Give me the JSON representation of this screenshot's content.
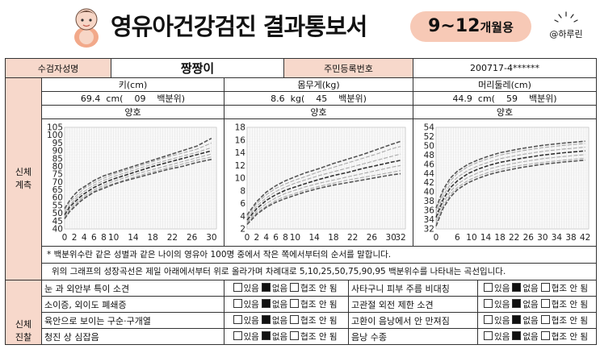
{
  "header": {
    "title": "영유아건강검진 결과통보서",
    "age_badge_main": "9~12",
    "age_badge_suffix": "개월용",
    "watermark": "@하루린"
  },
  "patient": {
    "name_label": "수검자성명",
    "name": "짱짱이",
    "id_label": "주민등록번호",
    "id_value": "200717-4******"
  },
  "section_body": "신체\n계측",
  "section_exam": "신체\n진찰",
  "measure": [
    {
      "label": "키(cm)",
      "value": "69.4  cm(    09    백분위)",
      "status": "양호"
    },
    {
      "label": "몸무게(kg)",
      "value": "8.6  kg(    45    백분위)",
      "status": "양호"
    },
    {
      "label": "머리둘레(cm)",
      "value": "44.9  cm(    59    백분위)",
      "status": "양호"
    }
  ],
  "note_line1": "* 백분위수란 같은 성별과 같은 나이의 영유아 100명 중에서 작은 쪽에서부터의 순서를 말합니다.",
  "note_line2": "위의 그래프의 성장곡선은 제일 아래에서부터 위로 올라가며 차례대로 5,10,25,50,75,90,95 백분위수를 나타내는 곡선입니다.",
  "options": [
    "있음",
    "없음",
    "협조 안 됨"
  ],
  "exam_rows": [
    {
      "left": "눈 과 외안부 특이 소견",
      "left_selected": 1,
      "right": "사타구니 피부 주름 비대칭",
      "right_selected": 1
    },
    {
      "left": "소이증, 외이도 폐쇄증",
      "left_selected": 1,
      "right": "고관절 외전 제한 소견",
      "right_selected": 1
    },
    {
      "left": "육안으로 보이는 구순·구개열",
      "left_selected": 1,
      "right": "고환이 음낭에서 안 만져짐",
      "right_selected": 1
    },
    {
      "left": "청진 상 심잡음",
      "left_selected": 1,
      "right": "음낭 수종",
      "right_selected": 1
    }
  ],
  "chart_data": [
    {
      "type": "line",
      "title": "",
      "xlabel": "",
      "ylabel": "",
      "x_ticks": [
        "0",
        "2",
        "4",
        "6",
        "8",
        "10",
        "14",
        "18",
        "22",
        "26",
        "30"
      ],
      "y_ticks": [
        "105",
        "100",
        "95",
        "90",
        "85",
        "80",
        "75",
        "70",
        "65",
        "60",
        "55",
        "50",
        "45",
        "40"
      ],
      "xlim": [
        0,
        31
      ],
      "ylim": [
        40,
        105
      ],
      "series": [
        {
          "percentile": 95,
          "x": [
            0,
            1,
            2,
            3,
            4,
            6,
            8,
            10,
            12,
            15,
            18,
            21,
            24,
            27,
            30
          ],
          "y": [
            53,
            58,
            62,
            65,
            67,
            71,
            74,
            76,
            78,
            81,
            84,
            87,
            90,
            93,
            98
          ]
        },
        {
          "percentile": 90,
          "x": [
            0,
            1,
            2,
            3,
            4,
            6,
            8,
            10,
            12,
            15,
            18,
            21,
            24,
            27,
            30
          ],
          "y": [
            52,
            57,
            60,
            63,
            66,
            69.5,
            72.5,
            75,
            77,
            80,
            83,
            86,
            88.5,
            91,
            95
          ]
        },
        {
          "percentile": 75,
          "x": [
            0,
            1,
            2,
            3,
            4,
            6,
            8,
            10,
            12,
            15,
            18,
            21,
            24,
            27,
            30
          ],
          "y": [
            50.5,
            55,
            58.5,
            61.5,
            64,
            68,
            71,
            73.5,
            75.5,
            78.5,
            81.5,
            84,
            86.5,
            89,
            92
          ]
        },
        {
          "percentile": 50,
          "x": [
            0,
            1,
            2,
            3,
            4,
            6,
            8,
            10,
            12,
            15,
            18,
            21,
            24,
            27,
            30
          ],
          "y": [
            49,
            54,
            57,
            60,
            62.5,
            66.5,
            69.5,
            72,
            74,
            77,
            80,
            82.5,
            85,
            87.5,
            90
          ]
        },
        {
          "percentile": 25,
          "x": [
            0,
            1,
            2,
            3,
            4,
            6,
            8,
            10,
            12,
            15,
            18,
            21,
            24,
            27,
            30
          ],
          "y": [
            48,
            52.5,
            55.5,
            58.5,
            61,
            65,
            68,
            70.5,
            72.5,
            75.5,
            78,
            80.5,
            83,
            85.5,
            88
          ]
        },
        {
          "percentile": 10,
          "x": [
            0,
            1,
            2,
            3,
            4,
            6,
            8,
            10,
            12,
            15,
            18,
            21,
            24,
            27,
            30
          ],
          "y": [
            47,
            51.5,
            54.5,
            57.5,
            60,
            64,
            67,
            69,
            71,
            74,
            76.5,
            79,
            81.5,
            84,
            86
          ]
        },
        {
          "percentile": 5,
          "x": [
            0,
            1,
            2,
            3,
            4,
            6,
            8,
            10,
            12,
            15,
            18,
            21,
            24,
            27,
            30
          ],
          "y": [
            46.5,
            51,
            54,
            57,
            59.5,
            63.5,
            66,
            68.5,
            70.5,
            73,
            75.5,
            78,
            80,
            82.5,
            84.5
          ]
        }
      ]
    },
    {
      "type": "line",
      "title": "",
      "xlabel": "",
      "ylabel": "",
      "x_ticks": [
        "0",
        "2",
        "4",
        "6",
        "8",
        "10",
        "14",
        "18",
        "22",
        "26",
        "30",
        "32"
      ],
      "y_ticks": [
        "18",
        "16",
        "14",
        "12",
        "10",
        "8",
        "6",
        "4",
        "2"
      ],
      "xlim": [
        0,
        33
      ],
      "ylim": [
        2,
        18
      ],
      "series": [
        {
          "percentile": 95,
          "x": [
            0,
            2,
            4,
            6,
            8,
            10,
            12,
            15,
            18,
            21,
            24,
            27,
            30,
            32
          ],
          "y": [
            4.2,
            6.3,
            7.8,
            8.8,
            9.6,
            10.2,
            10.8,
            11.5,
            12.3,
            13.0,
            13.7,
            14.5,
            15.3,
            15.8
          ]
        },
        {
          "percentile": 90,
          "x": [
            0,
            2,
            4,
            6,
            8,
            10,
            12,
            15,
            18,
            21,
            24,
            27,
            30,
            32
          ],
          "y": [
            4.0,
            6.0,
            7.4,
            8.4,
            9.1,
            9.7,
            10.2,
            11.0,
            11.7,
            12.4,
            13.1,
            13.8,
            14.6,
            15.0
          ]
        },
        {
          "percentile": 75,
          "x": [
            0,
            2,
            4,
            6,
            8,
            10,
            12,
            15,
            18,
            21,
            24,
            27,
            30,
            32
          ],
          "y": [
            3.7,
            5.6,
            6.9,
            7.9,
            8.6,
            9.2,
            9.7,
            10.4,
            11.0,
            11.6,
            12.2,
            12.8,
            13.4,
            13.8
          ]
        },
        {
          "percentile": 50,
          "x": [
            0,
            2,
            4,
            6,
            8,
            10,
            12,
            15,
            18,
            21,
            24,
            27,
            30,
            32
          ],
          "y": [
            3.4,
            5.2,
            6.5,
            7.4,
            8.1,
            8.6,
            9.1,
            9.8,
            10.4,
            10.9,
            11.5,
            12.0,
            12.5,
            12.8
          ]
        },
        {
          "percentile": 25,
          "x": [
            0,
            2,
            4,
            6,
            8,
            10,
            12,
            15,
            18,
            21,
            24,
            27,
            30,
            32
          ],
          "y": [
            3.1,
            4.8,
            6.0,
            6.9,
            7.6,
            8.1,
            8.6,
            9.2,
            9.7,
            10.2,
            10.7,
            11.2,
            11.7,
            12.0
          ]
        },
        {
          "percentile": 10,
          "x": [
            0,
            2,
            4,
            6,
            8,
            10,
            12,
            15,
            18,
            21,
            24,
            27,
            30,
            32
          ],
          "y": [
            2.9,
            4.5,
            5.6,
            6.5,
            7.1,
            7.6,
            8.1,
            8.7,
            9.2,
            9.7,
            10.1,
            10.5,
            10.9,
            11.2
          ]
        },
        {
          "percentile": 5,
          "x": [
            0,
            2,
            4,
            6,
            8,
            10,
            12,
            15,
            18,
            21,
            24,
            27,
            30,
            32
          ],
          "y": [
            2.7,
            4.3,
            5.4,
            6.2,
            6.8,
            7.3,
            7.8,
            8.4,
            8.9,
            9.3,
            9.7,
            10.1,
            10.5,
            10.7
          ]
        }
      ]
    },
    {
      "type": "line",
      "title": "",
      "xlabel": "",
      "ylabel": "",
      "x_ticks": [
        "0",
        "6",
        "10",
        "14",
        "18",
        "22",
        "26",
        "30",
        "34",
        "38",
        "42"
      ],
      "y_ticks": [
        "54",
        "52",
        "50",
        "48",
        "46",
        "44",
        "42",
        "40",
        "38",
        "36",
        "34",
        "32"
      ],
      "xlim": [
        0,
        43
      ],
      "ylim": [
        32,
        54
      ],
      "series": [
        {
          "percentile": 95,
          "x": [
            0,
            2,
            4,
            6,
            9,
            12,
            15,
            18,
            24,
            30,
            36,
            42
          ],
          "y": [
            36.5,
            40.5,
            43,
            44.5,
            46,
            47,
            47.8,
            48.5,
            49.4,
            50.1,
            50.6,
            51.0
          ]
        },
        {
          "percentile": 90,
          "x": [
            0,
            2,
            4,
            6,
            9,
            12,
            15,
            18,
            24,
            30,
            36,
            42
          ],
          "y": [
            36.0,
            40.0,
            42.4,
            44.0,
            45.5,
            46.5,
            47.3,
            48.0,
            48.9,
            49.6,
            50.1,
            50.5
          ]
        },
        {
          "percentile": 75,
          "x": [
            0,
            2,
            4,
            6,
            9,
            12,
            15,
            18,
            24,
            30,
            36,
            42
          ],
          "y": [
            35.2,
            39.2,
            41.6,
            43.2,
            44.7,
            45.7,
            46.5,
            47.2,
            48.1,
            48.8,
            49.3,
            49.7
          ]
        },
        {
          "percentile": 50,
          "x": [
            0,
            2,
            4,
            6,
            9,
            12,
            15,
            18,
            24,
            30,
            36,
            42
          ],
          "y": [
            34.5,
            38.4,
            40.9,
            42.4,
            44.0,
            45.0,
            45.8,
            46.4,
            47.3,
            48.0,
            48.5,
            48.9
          ]
        },
        {
          "percentile": 25,
          "x": [
            0,
            2,
            4,
            6,
            9,
            12,
            15,
            18,
            24,
            30,
            36,
            42
          ],
          "y": [
            33.8,
            37.7,
            40.1,
            41.7,
            43.2,
            44.2,
            45.0,
            45.6,
            46.5,
            47.2,
            47.7,
            48.1
          ]
        },
        {
          "percentile": 10,
          "x": [
            0,
            2,
            4,
            6,
            9,
            12,
            15,
            18,
            24,
            30,
            36,
            42
          ],
          "y": [
            33.1,
            37.0,
            39.4,
            41.0,
            42.5,
            43.5,
            44.3,
            44.9,
            45.8,
            46.4,
            46.9,
            47.3
          ]
        },
        {
          "percentile": 5,
          "x": [
            0,
            2,
            4,
            6,
            9,
            12,
            15,
            18,
            24,
            30,
            36,
            42
          ],
          "y": [
            32.6,
            36.5,
            38.9,
            40.5,
            42.0,
            43.0,
            43.8,
            44.4,
            45.3,
            46.0,
            46.5,
            46.9
          ]
        }
      ]
    }
  ]
}
